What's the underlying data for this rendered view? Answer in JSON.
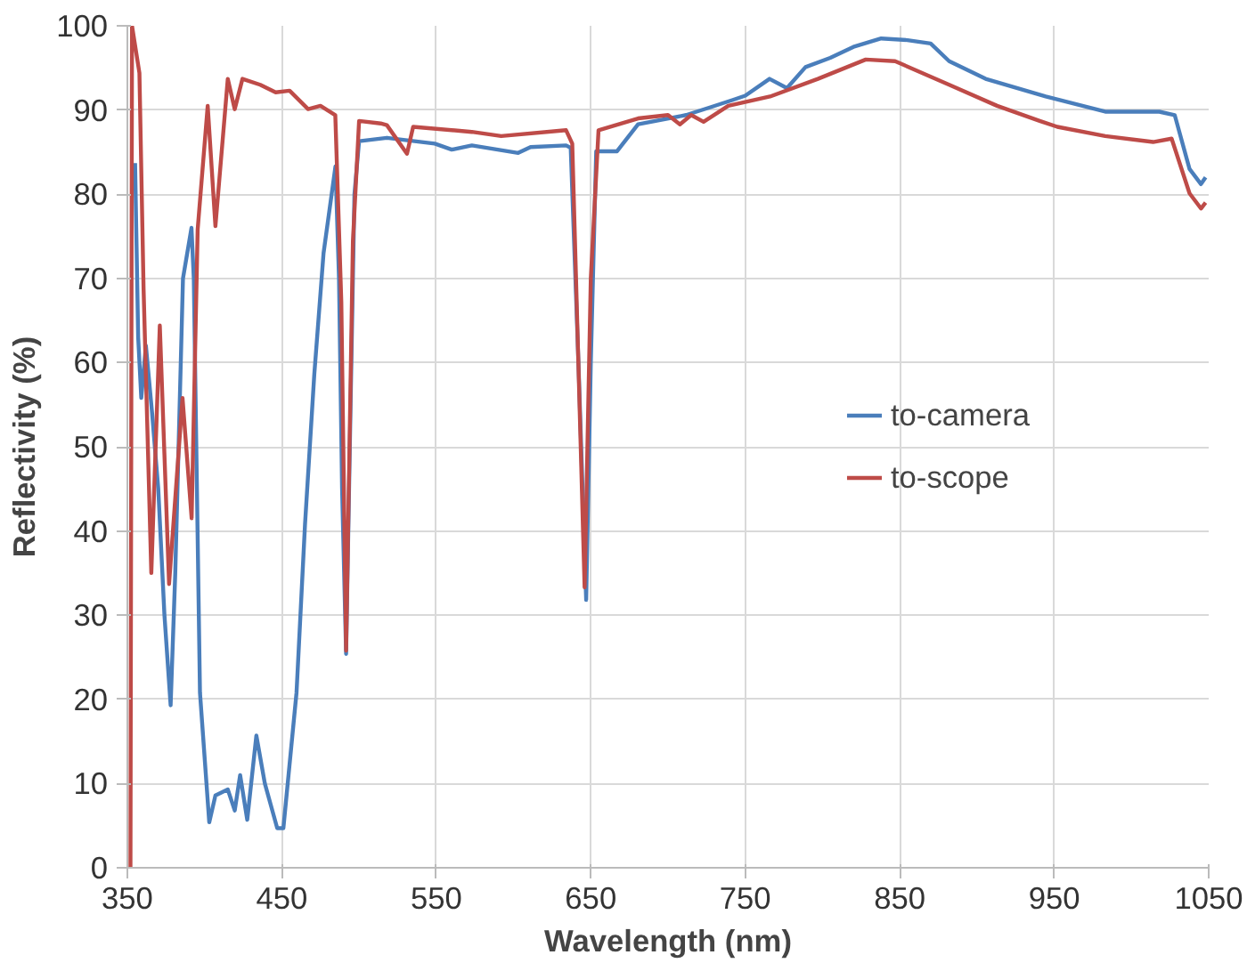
{
  "chart_data": {
    "type": "line",
    "xlabel": "Wavelength (nm)",
    "ylabel": "Reflectivity (%)",
    "xlim": [
      350,
      1050
    ],
    "xticks": [
      350,
      450,
      550,
      650,
      750,
      850,
      950,
      1050
    ],
    "ylim": [
      0,
      100
    ],
    "yticks": [
      0,
      10,
      20,
      30,
      40,
      50,
      60,
      70,
      80,
      90,
      100
    ],
    "grid": true,
    "legend": "right",
    "marker": "none",
    "line_style": "solid",
    "series": [
      {
        "name": "to-camera",
        "color": "#4a7ebb",
        "x": [
          355,
          357,
          359,
          362,
          366,
          370,
          374,
          378,
          381,
          386,
          391.5,
          393,
          397,
          403,
          407,
          415,
          419.5,
          423,
          427.6,
          433.5,
          439,
          447,
          451,
          459.5,
          465,
          471,
          477,
          484.7,
          487,
          489,
          491.6,
          494,
          497,
          500,
          518,
          549,
          560,
          573,
          603,
          611,
          634,
          637,
          642,
          647,
          650,
          653.5,
          667,
          680.6,
          711.7,
          727,
          742,
          750,
          765.7,
          777,
          789,
          805,
          820,
          838,
          855,
          870,
          882,
          905.6,
          944.5,
          983,
          998,
          1018,
          1028,
          1037.6,
          1045,
          1048
        ],
        "values": [
          83.7,
          63,
          55.8,
          62,
          54,
          45,
          30,
          19.3,
          35,
          70,
          76,
          70,
          20.8,
          5.4,
          8.6,
          9.3,
          6.8,
          11,
          5.7,
          15.7,
          10,
          4.7,
          4.7,
          20.8,
          40.8,
          58.6,
          73,
          83.3,
          70,
          45,
          25.4,
          50,
          80,
          86.3,
          86.7,
          86,
          85.3,
          85.8,
          84.9,
          85.6,
          85.8,
          85.5,
          60,
          31.8,
          60,
          85.1,
          85.1,
          88.3,
          89.4,
          90.3,
          91.2,
          91.7,
          93.7,
          92.6,
          95.1,
          96.2,
          97.5,
          98.5,
          98.3,
          97.9,
          95.8,
          93.7,
          91.6,
          89.8,
          89.8,
          89.8,
          89.4,
          83,
          81.2,
          82
        ]
      },
      {
        "name": "to-scope",
        "color": "#be4b48",
        "x": [
          352,
          353,
          357.8,
          360.5,
          365.5,
          371,
          377,
          385.7,
          391.6,
          395.5,
          402,
          407,
          415,
          419.5,
          424.5,
          436,
          446,
          455,
          467,
          475,
          484.6,
          488.5,
          491.6,
          496,
          500,
          514,
          518,
          531,
          535,
          573,
          592,
          634,
          638,
          646,
          650,
          655,
          680.6,
          700,
          707.7,
          715,
          723,
          739,
          766,
          797,
          828,
          847,
          882,
          913,
          940.6,
          952,
          983,
          1014,
          1026,
          1037.6,
          1045,
          1048
        ],
        "values": [
          0,
          100,
          94.4,
          68.7,
          35,
          64.4,
          33.7,
          55.8,
          41.5,
          75.8,
          90.5,
          76.2,
          93.7,
          90.1,
          93.7,
          93,
          92.1,
          92.3,
          90.1,
          90.5,
          89.4,
          67.2,
          25.8,
          74.4,
          88.7,
          88.4,
          88.2,
          84.8,
          88,
          87.4,
          86.9,
          87.6,
          86,
          33.3,
          70,
          87.6,
          89,
          89.4,
          88.3,
          89.4,
          88.6,
          90.5,
          91.6,
          93.7,
          96,
          95.8,
          93,
          90.5,
          88.7,
          88,
          86.9,
          86.2,
          86.6,
          80.1,
          78.3,
          79
        ]
      }
    ]
  }
}
